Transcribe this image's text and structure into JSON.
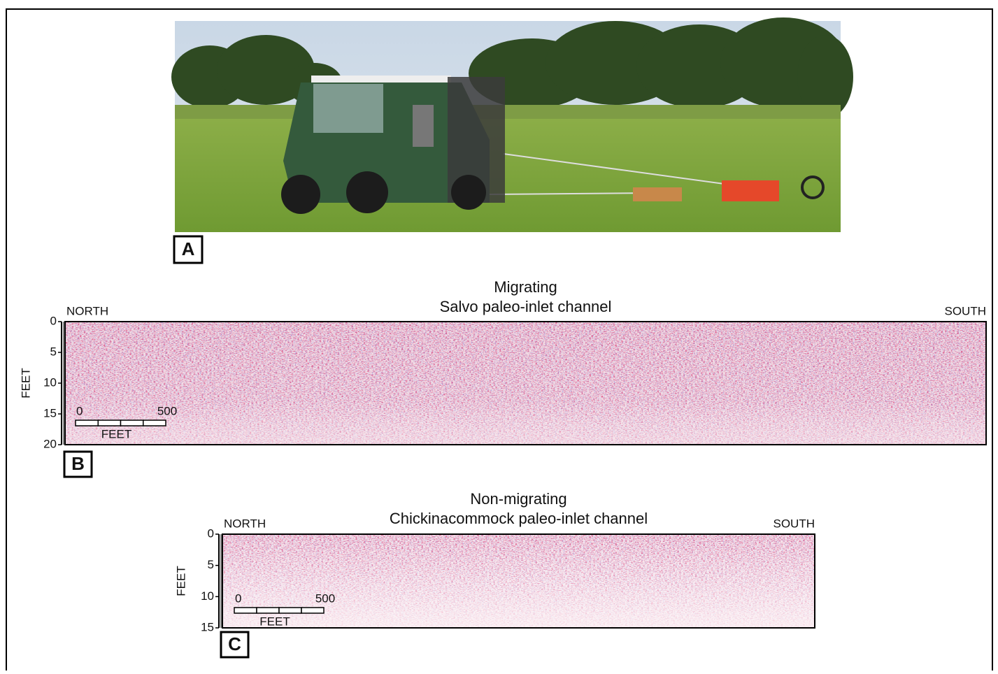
{
  "panels": [
    {
      "label": "A"
    },
    {
      "label": "B",
      "title": "Migrating",
      "subtitle": "Salvo paleo-inlet channel",
      "left": "NORTH",
      "right": "SOUTH",
      "axis_label": "FEET",
      "ylim": [
        0,
        20
      ],
      "yticks": [
        0,
        5,
        10,
        15,
        20
      ],
      "scale_bar": {
        "start": 0,
        "end": 500,
        "unit": "FEET"
      }
    },
    {
      "label": "C",
      "title": "Non-migrating",
      "subtitle": "Chickinacommock paleo-inlet channel",
      "left": "NORTH",
      "right": "SOUTH",
      "axis_label": "FEET",
      "ylim": [
        0,
        15
      ],
      "yticks": [
        0,
        5,
        10,
        15
      ],
      "scale_bar": {
        "start": 0,
        "end": 500,
        "unit": "FEET"
      }
    }
  ]
}
